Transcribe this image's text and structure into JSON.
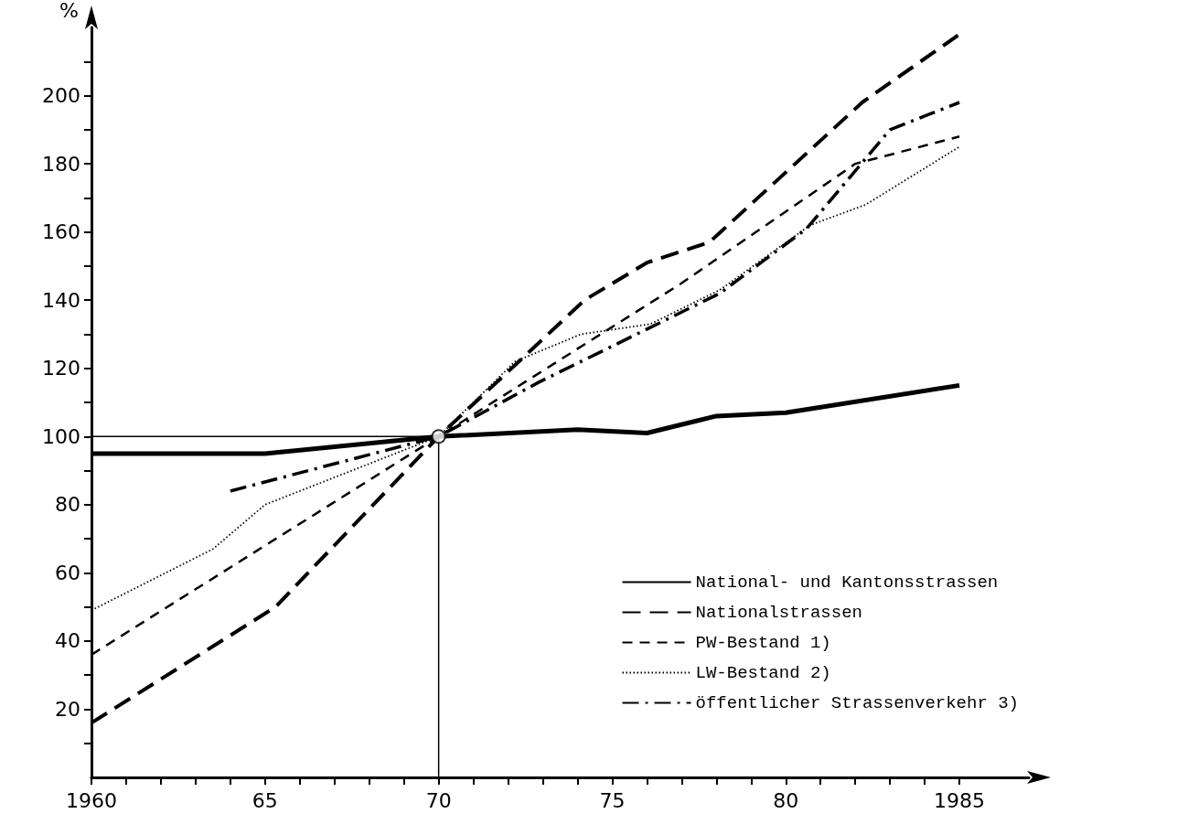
{
  "chart_data": {
    "type": "line",
    "ylabel": "%",
    "xlim": [
      1960,
      1987
    ],
    "ylim": [
      0,
      220
    ],
    "xticks": [
      1960,
      {
        "value": 1961,
        "label": null
      },
      {
        "value": 1962,
        "label": null
      },
      {
        "value": 1963,
        "label": null
      },
      {
        "value": 1964,
        "label": null
      },
      {
        "value": 1965,
        "label": "65"
      },
      {
        "value": 1966,
        "label": null
      },
      {
        "value": 1967,
        "label": null
      },
      {
        "value": 1968,
        "label": null
      },
      {
        "value": 1969,
        "label": null
      },
      {
        "value": 1970,
        "label": "70"
      },
      {
        "value": 1971,
        "label": null
      },
      {
        "value": 1972,
        "label": null
      },
      {
        "value": 1973,
        "label": null
      },
      {
        "value": 1974,
        "label": null
      },
      {
        "value": 1975,
        "label": "75"
      },
      {
        "value": 1976,
        "label": null
      },
      {
        "value": 1977,
        "label": null
      },
      {
        "value": 1978,
        "label": null
      },
      {
        "value": 1979,
        "label": null
      },
      {
        "value": 1980,
        "label": "80"
      },
      {
        "value": 1981,
        "label": null
      },
      {
        "value": 1982,
        "label": null
      },
      {
        "value": 1983,
        "label": null
      },
      {
        "value": 1984,
        "label": null
      },
      1985
    ],
    "yticks": [
      {
        "value": 10,
        "label": null
      },
      20,
      {
        "value": 30,
        "label": null
      },
      40,
      {
        "value": 50,
        "label": null
      },
      60,
      {
        "value": 70,
        "label": null
      },
      80,
      {
        "value": 90,
        "label": null
      },
      100,
      {
        "value": 110,
        "label": null
      },
      120,
      {
        "value": 130,
        "label": null
      },
      140,
      {
        "value": 150,
        "label": null
      },
      160,
      {
        "value": 170,
        "label": null
      },
      180,
      {
        "value": 190,
        "label": null
      },
      200,
      {
        "value": 210,
        "label": null
      }
    ],
    "grid": false,
    "legend": "bottom right",
    "marker": "none",
    "series": [
      {
        "name": "National- und Kantonsstrassen",
        "color": "#000000",
        "line_style": "solid",
        "x": [
          1960,
          1965,
          1970,
          1974,
          1976,
          1978,
          1980,
          1985
        ],
        "values": [
          95,
          95,
          100,
          102,
          101,
          106,
          107,
          115
        ]
      },
      {
        "name": "Nationalstrassen",
        "color": "#000000",
        "line_style": "dashed",
        "x": [
          1960,
          1965.3,
          1970,
          1974.2,
          1976,
          1977.8,
          1982.2,
          1985
        ],
        "values": [
          16,
          50,
          100,
          140,
          151,
          157,
          198,
          218
        ]
      },
      {
        "name": "PW-Bestand 1)",
        "color": "#000000",
        "line_style": "dashed",
        "x": [
          1960,
          1965,
          1970,
          1977,
          1982,
          1985
        ],
        "values": [
          36,
          68,
          100,
          145,
          180,
          188
        ]
      },
      {
        "name": "LW-Bestand 2)",
        "color": "#000000",
        "line_style": "dotted",
        "x": [
          1960,
          1963.5,
          1965,
          1970,
          1972.2,
          1974.1,
          1976.1,
          1978.1,
          1980.7,
          1982.3,
          1985
        ],
        "values": [
          49,
          67,
          80,
          100,
          122,
          130,
          133,
          143,
          162,
          168,
          185
        ]
      },
      {
        "name": "öffentlicher Strassenverkehr 3)",
        "color": "#000000",
        "line_style": "dashed",
        "x": [
          1964,
          1970,
          1972.9,
          1978.1,
          1980.6,
          1983,
          1985
        ],
        "values": [
          84,
          100,
          116,
          142,
          161,
          190,
          198
        ]
      },
      {
        "color": "#000000",
        "line_style": "solid",
        "x": [
          1960,
          1970,
          1970
        ],
        "values": [
          100,
          100,
          0
        ]
      },
      {
        "type": "scatter",
        "color": "#000000",
        "marker": "circle",
        "x": [
          1970
        ],
        "values": [
          100
        ]
      }
    ]
  }
}
